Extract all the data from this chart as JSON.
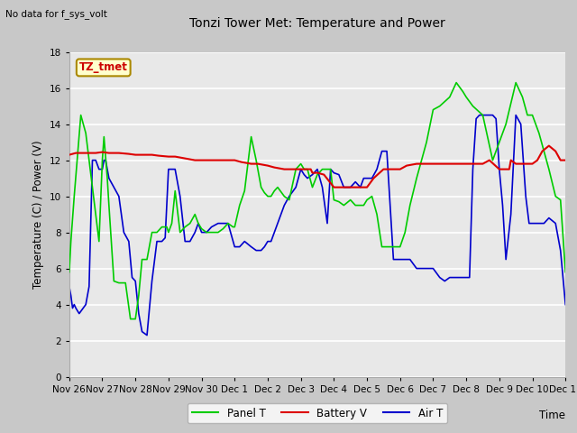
{
  "title": "Tonzi Tower Met: Temperature and Power",
  "ylabel": "Temperature (C) / Power (V)",
  "xlabel": "Time",
  "note": "No data for f_sys_volt",
  "label_text": "TZ_tmet",
  "ylim": [
    0,
    18
  ],
  "yticks": [
    0,
    2,
    4,
    6,
    8,
    10,
    12,
    14,
    16,
    18
  ],
  "xtick_labels": [
    "Nov 26",
    "Nov 27",
    "Nov 28",
    "Nov 29",
    "Nov 30",
    "Dec 1",
    "Dec 2",
    "Dec 3",
    "Dec 4",
    "Dec 5",
    "Dec 6",
    "Dec 7",
    "Dec 8",
    "Dec 9",
    "Dec 10",
    "Dec 11"
  ],
  "panel_color": "#00cc00",
  "battery_color": "#dd0000",
  "air_color": "#0000cc",
  "panel_t_x": [
    0.0,
    0.05,
    0.15,
    0.35,
    0.5,
    0.6,
    0.7,
    0.8,
    0.9,
    1.0,
    1.05,
    1.15,
    1.2,
    1.35,
    1.5,
    1.7,
    1.85,
    2.0,
    2.1,
    2.2,
    2.35,
    2.5,
    2.65,
    2.8,
    2.95,
    3.0,
    3.1,
    3.2,
    3.35,
    3.5,
    3.65,
    3.8,
    3.9,
    4.0,
    4.15,
    4.3,
    4.5,
    4.65,
    4.8,
    4.95,
    5.0,
    5.15,
    5.3,
    5.5,
    5.65,
    5.8,
    5.9,
    6.0,
    6.1,
    6.2,
    6.3,
    6.5,
    6.65,
    6.85,
    7.0,
    7.1,
    7.2,
    7.35,
    7.5,
    7.65,
    7.8,
    7.9,
    8.0,
    8.15,
    8.3,
    8.5,
    8.65,
    8.8,
    8.9,
    9.0,
    9.15,
    9.3,
    9.45,
    9.6,
    9.8,
    9.9,
    10.0,
    10.15,
    10.3,
    10.5,
    10.65,
    10.8,
    11.0,
    11.2,
    11.5,
    11.7,
    11.9,
    12.0,
    12.2,
    12.5,
    12.8,
    13.0,
    13.2,
    13.5,
    13.7,
    13.85,
    14.0,
    14.2,
    14.5,
    14.7,
    14.85,
    15.0
  ],
  "panel_t_y": [
    5.8,
    7.5,
    10.0,
    14.5,
    13.5,
    12.0,
    10.5,
    9.0,
    7.5,
    12.0,
    13.3,
    11.0,
    9.5,
    5.3,
    5.2,
    5.2,
    3.2,
    3.2,
    4.5,
    6.5,
    6.5,
    8.0,
    8.0,
    8.3,
    8.3,
    8.0,
    8.5,
    10.3,
    8.0,
    8.3,
    8.5,
    9.0,
    8.5,
    8.2,
    8.0,
    8.0,
    8.0,
    8.2,
    8.5,
    8.3,
    8.3,
    9.5,
    10.3,
    13.3,
    12.0,
    10.5,
    10.2,
    10.0,
    10.0,
    10.3,
    10.5,
    10.0,
    9.8,
    11.5,
    11.8,
    11.5,
    11.5,
    10.5,
    11.2,
    11.5,
    11.5,
    11.5,
    9.8,
    9.7,
    9.5,
    9.8,
    9.5,
    9.5,
    9.5,
    9.8,
    10.0,
    9.0,
    7.2,
    7.2,
    7.2,
    7.2,
    7.2,
    8.0,
    9.5,
    11.0,
    12.0,
    13.0,
    14.8,
    15.0,
    15.5,
    16.3,
    15.8,
    15.5,
    15.0,
    14.5,
    12.0,
    13.0,
    14.0,
    16.3,
    15.5,
    14.5,
    14.5,
    13.5,
    11.5,
    10.0,
    9.8,
    5.8
  ],
  "battery_v_x": [
    0.0,
    0.2,
    0.5,
    0.8,
    1.0,
    1.2,
    1.5,
    1.8,
    2.0,
    2.2,
    2.5,
    2.7,
    3.0,
    3.2,
    3.5,
    3.8,
    4.0,
    4.2,
    4.5,
    4.7,
    5.0,
    5.2,
    5.5,
    5.7,
    6.0,
    6.2,
    6.5,
    6.7,
    7.0,
    7.1,
    7.2,
    7.3,
    7.35,
    7.5,
    7.7,
    8.0,
    8.2,
    8.5,
    8.7,
    9.0,
    9.2,
    9.5,
    9.7,
    10.0,
    10.2,
    10.5,
    10.7,
    11.0,
    11.2,
    11.5,
    11.7,
    12.0,
    12.2,
    12.5,
    12.7,
    13.0,
    13.15,
    13.2,
    13.3,
    13.35,
    13.5,
    13.7,
    13.85,
    14.0,
    14.15,
    14.3,
    14.5,
    14.7,
    14.85,
    15.0
  ],
  "battery_v_y": [
    12.3,
    12.4,
    12.4,
    12.4,
    12.45,
    12.4,
    12.4,
    12.35,
    12.3,
    12.3,
    12.3,
    12.25,
    12.2,
    12.2,
    12.1,
    12.0,
    12.0,
    12.0,
    12.0,
    12.0,
    12.0,
    11.9,
    11.8,
    11.8,
    11.7,
    11.6,
    11.5,
    11.5,
    11.5,
    11.5,
    11.5,
    11.5,
    11.3,
    11.3,
    11.2,
    10.5,
    10.5,
    10.5,
    10.5,
    10.5,
    11.0,
    11.5,
    11.5,
    11.5,
    11.7,
    11.8,
    11.8,
    11.8,
    11.8,
    11.8,
    11.8,
    11.8,
    11.8,
    11.8,
    12.0,
    11.5,
    11.5,
    11.5,
    11.5,
    12.0,
    11.8,
    11.8,
    11.8,
    11.8,
    12.0,
    12.5,
    12.8,
    12.5,
    12.0,
    12.0
  ],
  "air_t_x": [
    0.0,
    0.05,
    0.1,
    0.15,
    0.2,
    0.3,
    0.5,
    0.6,
    0.7,
    0.8,
    0.9,
    1.0,
    1.05,
    1.1,
    1.2,
    1.35,
    1.5,
    1.65,
    1.8,
    1.9,
    2.0,
    2.1,
    2.2,
    2.35,
    2.5,
    2.65,
    2.8,
    2.9,
    3.0,
    3.1,
    3.2,
    3.35,
    3.5,
    3.65,
    3.8,
    3.9,
    4.0,
    4.15,
    4.3,
    4.5,
    4.65,
    4.8,
    5.0,
    5.15,
    5.3,
    5.5,
    5.65,
    5.8,
    5.9,
    6.0,
    6.1,
    6.2,
    6.3,
    6.5,
    6.65,
    6.85,
    7.0,
    7.1,
    7.2,
    7.35,
    7.5,
    7.65,
    7.8,
    7.9,
    8.0,
    8.15,
    8.3,
    8.5,
    8.65,
    8.8,
    8.9,
    9.0,
    9.15,
    9.3,
    9.45,
    9.6,
    9.8,
    10.0,
    10.15,
    10.3,
    10.5,
    10.65,
    10.8,
    11.0,
    11.2,
    11.35,
    11.5,
    11.65,
    11.8,
    11.9,
    12.0,
    12.1,
    12.2,
    12.3,
    12.4,
    12.5,
    12.65,
    12.8,
    12.9,
    13.0,
    13.1,
    13.2,
    13.35,
    13.5,
    13.65,
    13.8,
    13.9,
    14.0,
    14.1,
    14.2,
    14.35,
    14.5,
    14.7,
    14.85,
    15.0
  ],
  "air_t_y": [
    5.0,
    4.5,
    3.8,
    4.0,
    3.8,
    3.5,
    4.0,
    5.0,
    12.0,
    12.0,
    11.5,
    11.5,
    12.0,
    12.0,
    11.0,
    10.5,
    10.0,
    8.0,
    7.5,
    5.5,
    5.3,
    3.5,
    2.5,
    2.3,
    5.3,
    7.5,
    7.5,
    7.7,
    11.5,
    11.5,
    11.5,
    10.0,
    7.5,
    7.5,
    8.0,
    8.5,
    8.0,
    8.0,
    8.3,
    8.5,
    8.5,
    8.5,
    7.2,
    7.2,
    7.5,
    7.2,
    7.0,
    7.0,
    7.2,
    7.5,
    7.5,
    8.0,
    8.5,
    9.5,
    10.0,
    10.5,
    11.5,
    11.2,
    11.0,
    11.2,
    11.5,
    10.5,
    8.5,
    11.5,
    11.3,
    11.2,
    10.5,
    10.5,
    10.8,
    10.5,
    11.0,
    11.0,
    11.0,
    11.5,
    12.5,
    12.5,
    6.5,
    6.5,
    6.5,
    6.5,
    6.0,
    6.0,
    6.0,
    6.0,
    5.5,
    5.3,
    5.5,
    5.5,
    5.5,
    5.5,
    5.5,
    5.5,
    11.5,
    14.3,
    14.5,
    14.5,
    14.5,
    14.5,
    14.3,
    11.5,
    9.5,
    6.5,
    9.0,
    14.5,
    14.0,
    10.0,
    8.5,
    8.5,
    8.5,
    8.5,
    8.5,
    8.8,
    8.5,
    7.0,
    4.0
  ]
}
